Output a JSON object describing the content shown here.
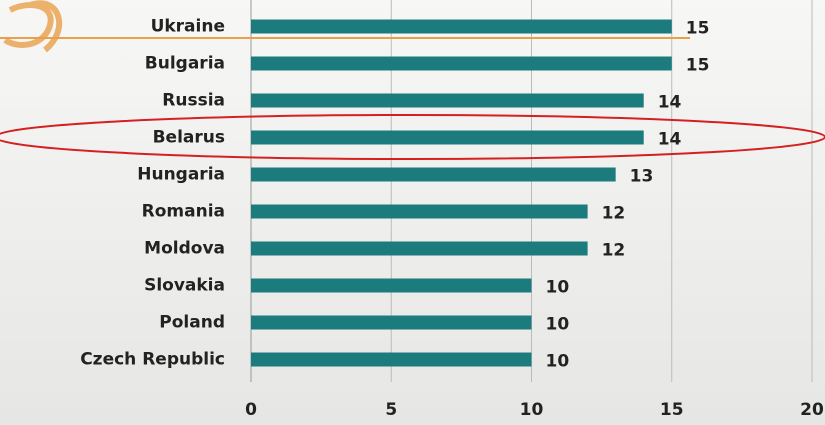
{
  "chart_data": {
    "type": "bar",
    "orientation": "horizontal",
    "categories": [
      "Ukraine",
      "Bulgaria",
      "Russia",
      "Belarus",
      "Hungaria",
      "Romania",
      "Moldova",
      "Slovakia",
      "Poland",
      "Czech Republic"
    ],
    "values": [
      15,
      15,
      14,
      14,
      13,
      12,
      12,
      10,
      10,
      10
    ],
    "color": "#1b7b7d",
    "xlim": [
      0,
      20
    ],
    "xticks": [
      0,
      5,
      10,
      15,
      20
    ],
    "grid": true
  }
}
